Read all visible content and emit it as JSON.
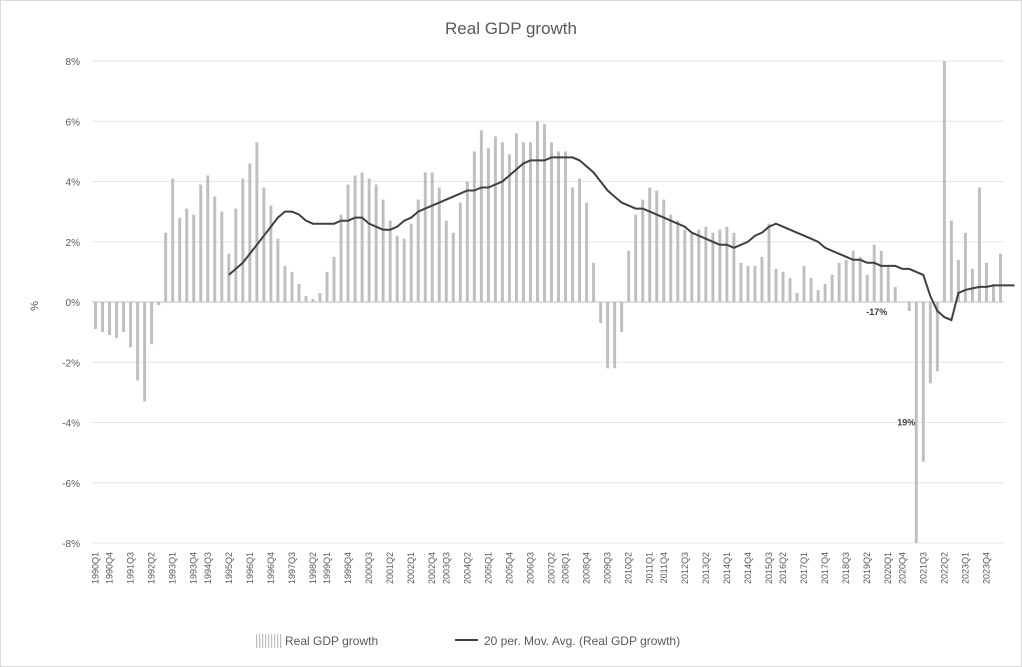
{
  "chart_data": {
    "type": "bar",
    "title": "Real GDP growth",
    "ylabel": "%",
    "xlabel": "",
    "ylim": [
      -8,
      8
    ],
    "yticks": [
      8,
      6,
      4,
      2,
      0,
      -2,
      -4,
      -6,
      -8
    ],
    "ytick_labels": [
      "8%",
      "6%",
      "4%",
      "2%",
      "0%",
      "-2%",
      "-4%",
      "-6%",
      "-8%"
    ],
    "grid": "horizontal",
    "legend_position": "bottom",
    "x_tick_labels": [
      "1990Q1",
      "1990Q4",
      "1991Q3",
      "1992Q2",
      "1993Q1",
      "1993Q4",
      "1994Q3",
      "1995Q2",
      "1996Q1",
      "1996Q4",
      "1997Q3",
      "1998Q2",
      "1999Q1",
      "1999Q4",
      "2000Q3",
      "2001Q2",
      "2002Q1",
      "2002Q4",
      "2003Q3",
      "2004Q2",
      "2005Q1",
      "2005Q4",
      "2006Q3",
      "2007Q2",
      "2008Q1",
      "2008Q4",
      "2009Q3",
      "2010Q2",
      "2011Q1",
      "2011Q4",
      "2012Q3",
      "2013Q2",
      "2014Q1",
      "2014Q4",
      "2015Q3",
      "2016Q2",
      "2017Q1",
      "2017Q4",
      "2018Q3",
      "2019Q2",
      "2020Q1",
      "2020Q4",
      "2021Q3",
      "2022Q2",
      "2023Q1",
      "2023Q4"
    ],
    "series": [
      {
        "name": "Real GDP growth",
        "type": "bar",
        "color": "#bfbfbf",
        "values": [
          -0.9,
          -1.0,
          -1.1,
          -1.2,
          -1.0,
          -1.5,
          -2.6,
          -3.3,
          -1.4,
          -0.1,
          2.3,
          4.1,
          2.8,
          3.1,
          2.9,
          3.9,
          4.2,
          3.5,
          3.0,
          1.6,
          3.1,
          4.1,
          4.6,
          5.3,
          3.8,
          3.2,
          2.1,
          1.2,
          1.0,
          0.6,
          0.2,
          0.1,
          0.3,
          1.0,
          1.5,
          2.9,
          3.9,
          4.2,
          4.3,
          4.1,
          3.9,
          3.4,
          2.7,
          2.2,
          2.1,
          2.6,
          3.4,
          4.3,
          4.3,
          3.8,
          2.7,
          2.3,
          3.3,
          4.0,
          5.0,
          5.7,
          5.1,
          5.5,
          5.3,
          4.9,
          5.6,
          5.3,
          5.3,
          6.0,
          5.9,
          5.3,
          5.0,
          5.0,
          3.8,
          4.1,
          3.3,
          1.3,
          -0.7,
          -2.2,
          -2.2,
          -1.0,
          1.7,
          2.9,
          3.4,
          3.8,
          3.7,
          3.4,
          2.9,
          2.7,
          2.4,
          2.3,
          2.4,
          2.5,
          2.3,
          2.4,
          2.5,
          2.3,
          1.3,
          1.2,
          1.2,
          1.5,
          2.6,
          1.1,
          1.0,
          0.8,
          0.3,
          1.2,
          0.8,
          0.4,
          0.6,
          0.9,
          1.3,
          1.4,
          1.7,
          1.5,
          0.9,
          1.9,
          1.7,
          1.2,
          0.5,
          0.0,
          -0.3,
          -8.0,
          -5.3,
          -2.7,
          -2.3,
          8.0,
          2.7,
          1.4,
          2.3,
          1.1,
          3.8,
          1.3,
          0.6,
          1.6
        ]
      },
      {
        "name": "20 per. Mov. Avg. (Real GDP growth)",
        "type": "line",
        "color": "#404040",
        "values": [
          null,
          null,
          null,
          null,
          null,
          null,
          null,
          null,
          null,
          null,
          null,
          null,
          null,
          null,
          null,
          null,
          null,
          null,
          null,
          0.9,
          1.1,
          1.3,
          1.6,
          1.9,
          2.2,
          2.5,
          2.8,
          3.0,
          3.0,
          2.9,
          2.7,
          2.6,
          2.6,
          2.6,
          2.6,
          2.7,
          2.7,
          2.8,
          2.8,
          2.6,
          2.5,
          2.4,
          2.4,
          2.5,
          2.7,
          2.8,
          3.0,
          3.1,
          3.2,
          3.3,
          3.4,
          3.5,
          3.6,
          3.7,
          3.7,
          3.8,
          3.8,
          3.9,
          4.0,
          4.2,
          4.4,
          4.6,
          4.7,
          4.7,
          4.7,
          4.8,
          4.8,
          4.8,
          4.8,
          4.7,
          4.5,
          4.3,
          4.0,
          3.7,
          3.5,
          3.3,
          3.2,
          3.1,
          3.1,
          3.0,
          2.9,
          2.8,
          2.7,
          2.6,
          2.5,
          2.3,
          2.2,
          2.1,
          2.0,
          1.9,
          1.9,
          1.8,
          1.9,
          2.0,
          2.2,
          2.3,
          2.5,
          2.6,
          2.5,
          2.4,
          2.3,
          2.2,
          2.1,
          2.0,
          1.8,
          1.7,
          1.6,
          1.5,
          1.4,
          1.4,
          1.3,
          1.3,
          1.2,
          1.2,
          1.2,
          1.1,
          1.1,
          1.0,
          0.9,
          0.2,
          -0.3,
          -0.5,
          -0.6,
          0.3,
          0.4,
          0.45,
          0.5,
          0.5,
          0.55,
          0.55,
          0.55,
          0.55
        ]
      }
    ],
    "annotations": [
      {
        "text": "19%",
        "series_index": 118
      },
      {
        "text": "-17%",
        "series_index": 114
      }
    ],
    "legend": [
      "Real GDP growth",
      "20 per. Mov. Avg. (Real GDP growth)"
    ]
  }
}
